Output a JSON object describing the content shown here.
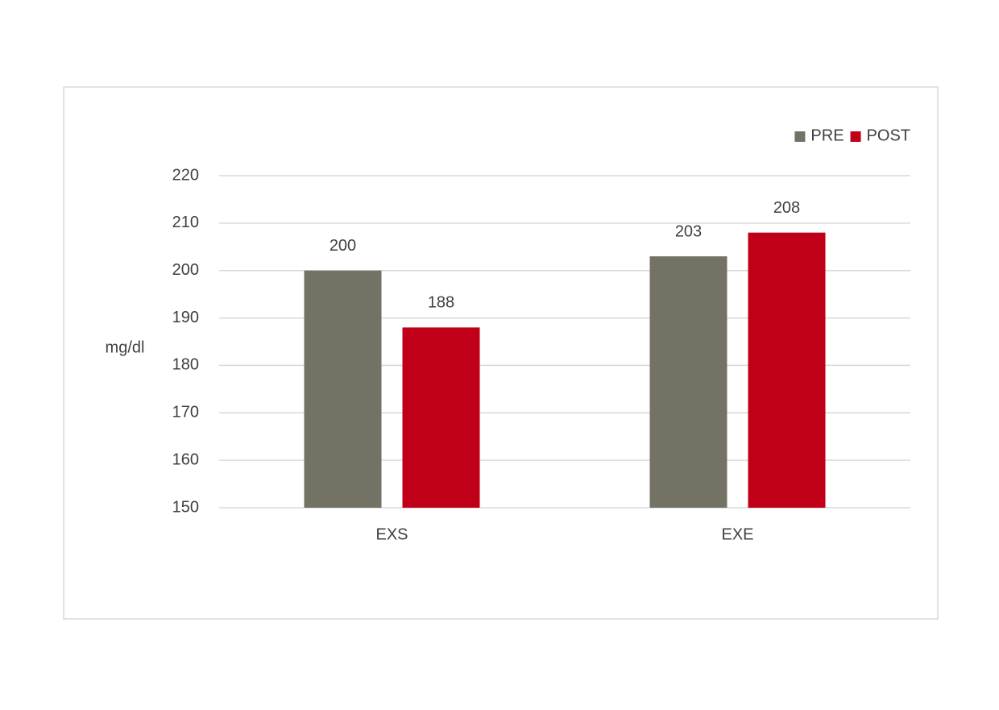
{
  "chart_data": {
    "type": "bar",
    "y_label": "mg/dl",
    "categories": [
      "EXS",
      "EXE"
    ],
    "series": [
      {
        "name": "PRE",
        "color": "#737264",
        "values": [
          200,
          203
        ]
      },
      {
        "name": "POST",
        "color": "#c00018",
        "values": [
          188,
          208
        ]
      }
    ],
    "ylim": [
      150,
      220
    ],
    "yticks": [
      150,
      160,
      170,
      180,
      190,
      200,
      210,
      220
    ],
    "grid": true,
    "legend": "top-right",
    "data_labels": true
  }
}
